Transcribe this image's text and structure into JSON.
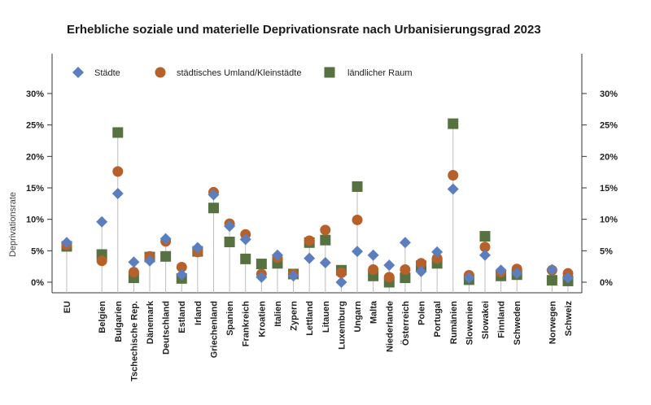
{
  "chart_data": {
    "type": "scatter",
    "title": "Erhebliche soziale und materielle Deprivationsrate nach Urbanisierungsgrad 2023",
    "ylabel": "Deprivationsrate",
    "ylim": [
      0,
      30
    ],
    "yticks": [
      "0%",
      "5%",
      "10%",
      "15%",
      "20%",
      "25%",
      "30%"
    ],
    "ytick_values": [
      0,
      5,
      10,
      15,
      20,
      25,
      30
    ],
    "legend_position": "top",
    "grid": false,
    "categories": [
      "EU",
      "Belgien",
      "Bulgarien",
      "Tschechische Rep.",
      "Dänemark",
      "Deutschland",
      "Estland",
      "Irland",
      "Griechenland",
      "Spanien",
      "Frankreich",
      "Kroatien",
      "Italien",
      "Zypern",
      "Lettland",
      "Litauen",
      "Luxemburg",
      "Ungarn",
      "Malta",
      "Niederlande",
      "Österreich",
      "Polen",
      "Portugal",
      "Rumänien",
      "Slowenien",
      "Slowakei",
      "Finnland",
      "Schweden",
      "Norwegen",
      "Schweiz"
    ],
    "category_gap_after": [
      0,
      27
    ],
    "series": [
      {
        "name": "Städte",
        "marker": "diamond",
        "color": "#5b7fbe",
        "values": [
          6.3,
          9.6,
          14.1,
          3.2,
          3.4,
          6.9,
          1.2,
          5.5,
          13.9,
          8.9,
          6.8,
          0.8,
          4.3,
          1.0,
          3.8,
          3.1,
          0.0,
          4.9,
          4.3,
          2.7,
          6.3,
          1.7,
          4.8,
          14.8,
          0.7,
          4.3,
          1.9,
          1.4,
          2.0,
          0.7
        ]
      },
      {
        "name": "städtisches Umland/Kleinstädte",
        "marker": "circle",
        "color": "#b8602a",
        "values": [
          5.9,
          3.4,
          17.6,
          1.6,
          4.1,
          6.5,
          2.4,
          4.8,
          14.3,
          9.3,
          7.6,
          1.3,
          3.9,
          1.3,
          6.6,
          8.3,
          1.5,
          9.9,
          2.0,
          0.8,
          2.0,
          3.0,
          3.8,
          17.0,
          1.1,
          5.6,
          1.6,
          2.1,
          1.9,
          1.4
        ]
      },
      {
        "name": "ländlicher Raum",
        "marker": "square",
        "color": "#567240",
        "values": [
          5.7,
          4.4,
          23.8,
          0.7,
          4.0,
          4.1,
          0.6,
          4.9,
          11.8,
          6.4,
          3.7,
          2.9,
          3.0,
          1.3,
          6.3,
          6.7,
          1.9,
          15.2,
          1.0,
          0.0,
          0.7,
          2.6,
          3.0,
          25.2,
          0.4,
          7.3,
          1.0,
          1.2,
          0.3,
          0.2
        ]
      }
    ]
  },
  "colors": {
    "axis": "#333333",
    "dropline": "#bdbdbd"
  }
}
